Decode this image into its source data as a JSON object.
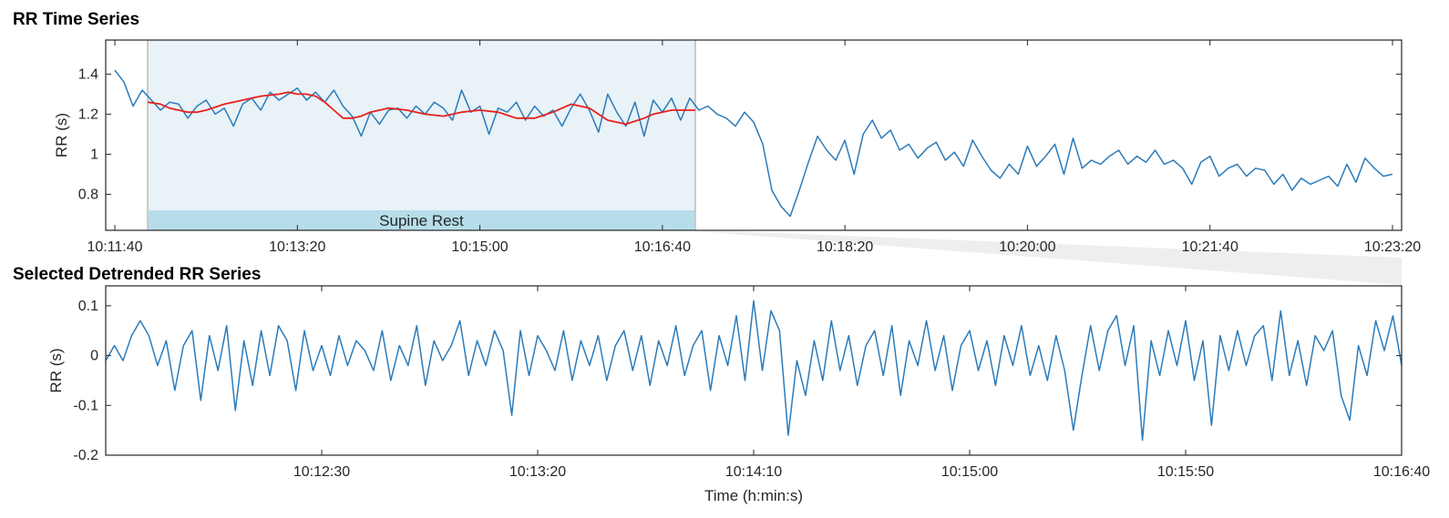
{
  "chart_data": [
    {
      "type": "line",
      "title": "RR Time Series",
      "xlabel": "",
      "ylabel": "RR (s)",
      "x_unit": "seconds from 10:11:40",
      "xlim": [
        -5,
        705
      ],
      "ylim": [
        0.62,
        1.57
      ],
      "x_ticks": [
        0,
        100,
        200,
        300,
        400,
        500,
        600,
        700
      ],
      "x_tick_labels": [
        "10:11:40",
        "10:13:20",
        "10:15:00",
        "10:16:40",
        "10:18:20",
        "10:20:00",
        "10:21:40",
        "10:23:20"
      ],
      "y_ticks": [
        0.8,
        1.0,
        1.2,
        1.4
      ],
      "y_tick_labels": [
        "0.8",
        "1",
        "1.2",
        "1.4"
      ],
      "grid": false,
      "highlight_region": {
        "x_start": 18,
        "x_end": 318,
        "label": "Supine Rest"
      },
      "colors": {
        "series": "#2b7bba",
        "trend": "#e8201c",
        "region_fill": "#e8f2f7",
        "region_band": "#b6dde9",
        "region_edge": "#c8c8c8"
      },
      "series": [
        {
          "x": [
            0,
            5,
            10,
            15,
            20,
            25,
            30,
            35,
            40,
            45,
            50,
            55,
            60,
            65,
            70,
            75,
            80,
            85,
            90,
            95,
            100,
            105,
            110,
            115,
            120,
            125,
            130,
            135,
            140,
            145,
            150,
            155,
            160,
            165,
            170,
            175,
            180,
            185,
            190,
            195,
            200,
            205,
            210,
            215,
            220,
            225,
            230,
            235,
            240,
            245,
            250,
            255,
            260,
            265,
            270,
            275,
            280,
            285,
            290,
            295,
            300,
            305,
            310,
            315,
            320,
            325,
            330,
            335,
            340,
            345,
            350,
            355,
            360,
            365,
            370,
            375,
            380,
            385,
            390,
            395,
            400,
            405,
            410,
            415,
            420,
            425,
            430,
            435,
            440,
            445,
            450,
            455,
            460,
            465,
            470,
            475,
            480,
            485,
            490,
            495,
            500,
            505,
            510,
            515,
            520,
            525,
            530,
            535,
            540,
            545,
            550,
            555,
            560,
            565,
            570,
            575,
            580,
            585,
            590,
            595,
            600,
            605,
            610,
            615,
            620,
            625,
            630,
            635,
            640,
            645,
            650,
            655,
            660,
            665,
            670,
            675,
            680,
            685,
            690,
            695,
            700
          ],
          "y": [
            1.42,
            1.36,
            1.24,
            1.32,
            1.27,
            1.22,
            1.26,
            1.25,
            1.18,
            1.24,
            1.27,
            1.2,
            1.23,
            1.14,
            1.25,
            1.28,
            1.22,
            1.31,
            1.27,
            1.3,
            1.33,
            1.27,
            1.31,
            1.26,
            1.32,
            1.24,
            1.19,
            1.09,
            1.21,
            1.15,
            1.22,
            1.23,
            1.18,
            1.24,
            1.2,
            1.26,
            1.23,
            1.17,
            1.32,
            1.21,
            1.24,
            1.1,
            1.23,
            1.21,
            1.26,
            1.17,
            1.24,
            1.19,
            1.22,
            1.14,
            1.23,
            1.3,
            1.22,
            1.11,
            1.3,
            1.21,
            1.14,
            1.26,
            1.09,
            1.27,
            1.21,
            1.28,
            1.17,
            1.28,
            1.22,
            1.24,
            1.2,
            1.18,
            1.14,
            1.21,
            1.16,
            1.05,
            0.82,
            0.74,
            0.69,
            0.82,
            0.96,
            1.09,
            1.02,
            0.97,
            1.07,
            0.9,
            1.1,
            1.17,
            1.08,
            1.12,
            1.02,
            1.05,
            0.98,
            1.03,
            1.06,
            0.97,
            1.01,
            0.94,
            1.07,
            0.99,
            0.92,
            0.88,
            0.95,
            0.9,
            1.04,
            0.94,
            0.99,
            1.05,
            0.9,
            1.08,
            0.93,
            0.97,
            0.95,
            0.99,
            1.02,
            0.95,
            0.99,
            0.96,
            1.02,
            0.95,
            0.97,
            0.93,
            0.85,
            0.96,
            0.99,
            0.89,
            0.93,
            0.95,
            0.89,
            0.93,
            0.92,
            0.85,
            0.9,
            0.82,
            0.88,
            0.85,
            0.87,
            0.89,
            0.84,
            0.95,
            0.86,
            0.98,
            0.93,
            0.89,
            0.9
          ]
        },
        {
          "x": [
            18,
            25,
            30,
            35,
            40,
            45,
            50,
            60,
            70,
            80,
            90,
            95,
            100,
            105,
            110,
            115,
            120,
            125,
            130,
            135,
            140,
            145,
            150,
            160,
            170,
            180,
            190,
            200,
            210,
            220,
            230,
            240,
            250,
            260,
            270,
            280,
            290,
            295,
            300,
            305,
            310,
            318
          ],
          "y": [
            1.26,
            1.25,
            1.23,
            1.22,
            1.21,
            1.21,
            1.22,
            1.25,
            1.27,
            1.29,
            1.3,
            1.31,
            1.3,
            1.3,
            1.29,
            1.26,
            1.22,
            1.18,
            1.18,
            1.19,
            1.21,
            1.22,
            1.23,
            1.22,
            1.2,
            1.19,
            1.21,
            1.22,
            1.21,
            1.18,
            1.18,
            1.21,
            1.25,
            1.23,
            1.17,
            1.15,
            1.18,
            1.2,
            1.21,
            1.22,
            1.22,
            1.22
          ]
        }
      ]
    },
    {
      "type": "line",
      "title": "Selected Detrended RR Series",
      "xlabel": "Time (h:min:s)",
      "ylabel": "RR (s)",
      "x_unit": "seconds from 10:11:40",
      "xlim": [
        0,
        300
      ],
      "ylim": [
        -0.2,
        0.14
      ],
      "x_ticks": [
        50,
        100,
        150,
        200,
        250,
        300
      ],
      "x_tick_labels": [
        "10:12:30",
        "10:13:20",
        "10:14:10",
        "10:15:00",
        "10:15:50",
        "10:16:40"
      ],
      "y_ticks": [
        -0.2,
        -0.1,
        0,
        0.1
      ],
      "y_tick_labels": [
        "-0.2",
        "-0.1",
        "0",
        "0.1"
      ],
      "grid": false,
      "colors": {
        "series": "#2b7bba"
      },
      "series": [
        {
          "x": [
            0,
            2,
            4,
            6,
            8,
            10,
            12,
            14,
            16,
            18,
            20,
            22,
            24,
            26,
            28,
            30,
            32,
            34,
            36,
            38,
            40,
            42,
            44,
            46,
            48,
            50,
            52,
            54,
            56,
            58,
            60,
            62,
            64,
            66,
            68,
            70,
            72,
            74,
            76,
            78,
            80,
            82,
            84,
            86,
            88,
            90,
            92,
            94,
            96,
            98,
            100,
            102,
            104,
            106,
            108,
            110,
            112,
            114,
            116,
            118,
            120,
            122,
            124,
            126,
            128,
            130,
            132,
            134,
            136,
            138,
            140,
            142,
            144,
            146,
            148,
            150,
            152,
            154,
            156,
            158,
            160,
            162,
            164,
            166,
            168,
            170,
            172,
            174,
            176,
            178,
            180,
            182,
            184,
            186,
            188,
            190,
            192,
            194,
            196,
            198,
            200,
            202,
            204,
            206,
            208,
            210,
            212,
            214,
            216,
            218,
            220,
            222,
            224,
            226,
            228,
            230,
            232,
            234,
            236,
            238,
            240,
            242,
            244,
            246,
            248,
            250,
            252,
            254,
            256,
            258,
            260,
            262,
            264,
            266,
            268,
            270,
            272,
            274,
            276,
            278,
            280,
            282,
            284,
            286,
            288,
            290,
            292,
            294,
            296,
            298,
            300
          ],
          "y": [
            -0.01,
            0.02,
            -0.01,
            0.04,
            0.07,
            0.04,
            -0.02,
            0.03,
            -0.07,
            0.02,
            0.05,
            -0.09,
            0.04,
            -0.03,
            0.06,
            -0.11,
            0.03,
            -0.06,
            0.05,
            -0.04,
            0.06,
            0.03,
            -0.07,
            0.05,
            -0.03,
            0.02,
            -0.04,
            0.04,
            -0.02,
            0.03,
            0.01,
            -0.03,
            0.05,
            -0.05,
            0.02,
            -0.02,
            0.06,
            -0.06,
            0.03,
            -0.01,
            0.02,
            0.07,
            -0.04,
            0.03,
            -0.02,
            0.05,
            0.01,
            -0.12,
            0.05,
            -0.04,
            0.04,
            0.01,
            -0.03,
            0.05,
            -0.05,
            0.03,
            -0.02,
            0.04,
            -0.05,
            0.02,
            0.05,
            -0.03,
            0.04,
            -0.06,
            0.03,
            -0.02,
            0.06,
            -0.04,
            0.02,
            0.05,
            -0.07,
            0.04,
            -0.02,
            0.08,
            -0.05,
            0.11,
            -0.03,
            0.09,
            0.05,
            -0.16,
            -0.01,
            -0.08,
            0.03,
            -0.05,
            0.07,
            -0.03,
            0.04,
            -0.06,
            0.02,
            0.05,
            -0.04,
            0.06,
            -0.08,
            0.03,
            -0.02,
            0.07,
            -0.03,
            0.04,
            -0.07,
            0.02,
            0.05,
            -0.03,
            0.03,
            -0.06,
            0.04,
            -0.02,
            0.06,
            -0.04,
            0.02,
            -0.05,
            0.04,
            -0.03,
            -0.15,
            -0.04,
            0.06,
            -0.03,
            0.05,
            0.08,
            -0.02,
            0.06,
            -0.17,
            0.03,
            -0.04,
            0.05,
            -0.02,
            0.07,
            -0.05,
            0.03,
            -0.14,
            0.04,
            -0.03,
            0.05,
            -0.02,
            0.04,
            0.06,
            -0.05,
            0.09,
            -0.04,
            0.03,
            -0.06,
            0.04,
            0.01,
            0.05,
            -0.08,
            -0.13,
            0.02,
            -0.04,
            0.07,
            0.01,
            0.08,
            -0.02
          ]
        }
      ]
    }
  ]
}
